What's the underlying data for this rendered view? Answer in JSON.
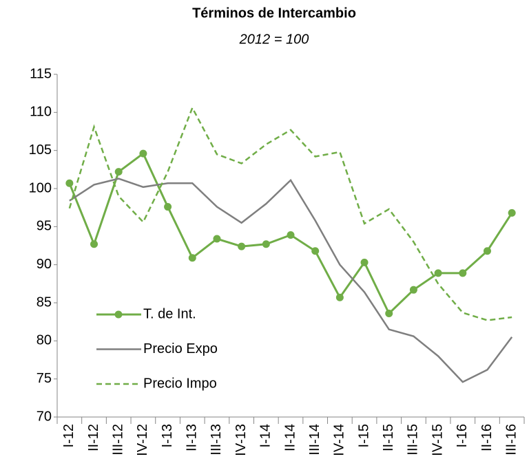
{
  "chart_data": {
    "type": "line",
    "title": "Términos de Intercambio",
    "subtitle": "2012 = 100",
    "categories": [
      "I-12",
      "II-12",
      "III-12",
      "IV-12",
      "I-13",
      "II-13",
      "III-13",
      "IV-13",
      "I-14",
      "II-14",
      "III-14",
      "IV-14",
      "I-15",
      "II-15",
      "III-15",
      "IV-15",
      "I-16",
      "II-16",
      "III-16"
    ],
    "series": [
      {
        "name": "T. de Int.",
        "color": "#70ad47",
        "style": "solid",
        "marker": "circle",
        "values": [
          100.7,
          92.7,
          102.2,
          104.6,
          97.6,
          90.9,
          93.4,
          92.4,
          92.7,
          93.9,
          91.8,
          85.7,
          90.3,
          83.6,
          86.7,
          88.9,
          88.9,
          91.8,
          96.8
        ]
      },
      {
        "name": "Precio Expo",
        "color": "#7f7f7f",
        "style": "solid",
        "values": [
          98.4,
          100.5,
          101.3,
          100.2,
          100.7,
          100.7,
          97.6,
          95.5,
          98.0,
          101.1,
          95.8,
          90.0,
          86.4,
          81.5,
          80.6,
          78.0,
          74.6,
          76.2,
          80.5
        ]
      },
      {
        "name": "Precio Impo",
        "color": "#70ad47",
        "style": "dashed",
        "values": [
          97.4,
          108.1,
          99.0,
          95.6,
          102.2,
          110.6,
          104.5,
          103.3,
          105.8,
          107.7,
          104.2,
          104.8,
          95.4,
          97.3,
          93.0,
          87.5,
          83.7,
          82.7,
          83.1
        ]
      }
    ],
    "ylim": [
      70,
      115
    ],
    "yticks": [
      70,
      75,
      80,
      85,
      90,
      95,
      100,
      105,
      110,
      115
    ],
    "grid": false,
    "legend": "lower left"
  }
}
